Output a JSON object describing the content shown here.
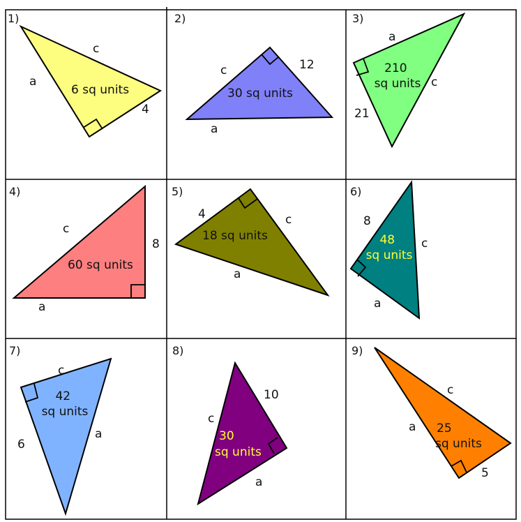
{
  "worksheet": {
    "problems": [
      {
        "number": "1)",
        "fill": "#fdfd80",
        "area_lines": [
          "6 sq units"
        ],
        "area_color": "#111111",
        "labels": {
          "a": "a",
          "c": "c",
          "leg": "4"
        }
      },
      {
        "number": "2)",
        "fill": "#8080f8",
        "area_lines": [
          "30 sq units"
        ],
        "area_color": "#111111",
        "labels": {
          "a": "a",
          "c": "c",
          "leg": "12"
        }
      },
      {
        "number": "3)",
        "fill": "#80ff80",
        "area_lines": [
          "210",
          "sq units"
        ],
        "area_color": "#111111",
        "labels": {
          "a": "a",
          "c": "c",
          "leg": "21"
        }
      },
      {
        "number": "4)",
        "fill": "#fd7f7f",
        "area_lines": [
          "60 sq units"
        ],
        "area_color": "#111111",
        "labels": {
          "a": "a",
          "c": "c",
          "leg": "8"
        }
      },
      {
        "number": "5)",
        "fill": "#808000",
        "area_lines": [
          "18 sq units"
        ],
        "area_color": "#111111",
        "labels": {
          "a": "a",
          "c": "c",
          "leg": "4"
        }
      },
      {
        "number": "6)",
        "fill": "#008080",
        "area_lines": [
          "48",
          "sq units"
        ],
        "area_color": "#ffff33",
        "labels": {
          "a": "a",
          "c": "c",
          "leg": "8"
        }
      },
      {
        "number": "7)",
        "fill": "#80b3ff",
        "area_lines": [
          "42",
          "sq units"
        ],
        "area_color": "#111111",
        "labels": {
          "a": "a",
          "c": "c",
          "leg": "6"
        }
      },
      {
        "number": "8)",
        "fill": "#800080",
        "area_lines": [
          "30",
          "sq units"
        ],
        "area_color": "#ffff33",
        "labels": {
          "a": "a",
          "c": "c",
          "leg": "10"
        }
      },
      {
        "number": "9)",
        "fill": "#ff8000",
        "area_lines": [
          "25",
          "sq units"
        ],
        "area_color": "#111111",
        "labels": {
          "a": "a",
          "c": "c",
          "leg": "5"
        }
      }
    ]
  }
}
